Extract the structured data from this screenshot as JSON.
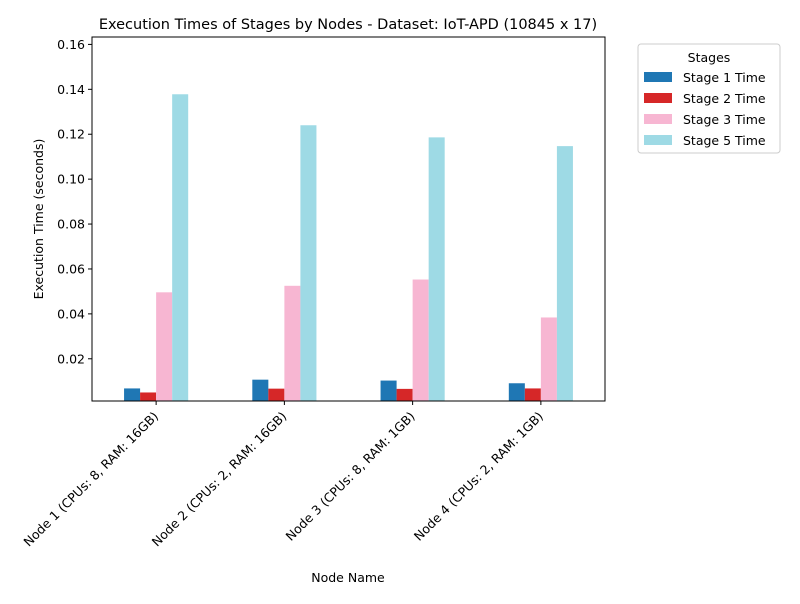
{
  "chart_data": {
    "type": "bar",
    "title": "Execution Times of Stages by Nodes - Dataset: IoT-APD (10845 x 17)",
    "xlabel": "Node Name",
    "ylabel": "Execution Time (seconds)",
    "ylim": [
      0.0012,
      0.1633
    ],
    "yticks": [
      0.02,
      0.04,
      0.06,
      0.08,
      0.1,
      0.12,
      0.14,
      0.16
    ],
    "ytick_labels": [
      "0.02",
      "0.04",
      "0.06",
      "0.08",
      "0.10",
      "0.12",
      "0.14",
      "0.16"
    ],
    "grid": false,
    "categories": [
      "Node 1 (CPUs: 8, RAM: 16GB)",
      "Node 2 (CPUs: 2, RAM: 16GB)",
      "Node 3 (CPUs: 8, RAM: 1GB)",
      "Node 4 (CPUs: 2, RAM: 1GB)"
    ],
    "legend": {
      "title": "Stages",
      "placement": "outside right, top"
    },
    "series": [
      {
        "name": "Stage 1 Time",
        "color": "#1f77b4",
        "values": [
          0.0068,
          0.0107,
          0.0103,
          0.0091
        ]
      },
      {
        "name": "Stage 2 Time",
        "color": "#d62728",
        "values": [
          0.005,
          0.0067,
          0.0066,
          0.0068
        ]
      },
      {
        "name": "Stage 3 Time",
        "color": "#f7b6d2",
        "values": [
          0.0496,
          0.0525,
          0.0553,
          0.0384
        ]
      },
      {
        "name": "Stage 5 Time",
        "color": "#9edae5",
        "values": [
          0.1378,
          0.124,
          0.1186,
          0.1147
        ]
      }
    ]
  }
}
